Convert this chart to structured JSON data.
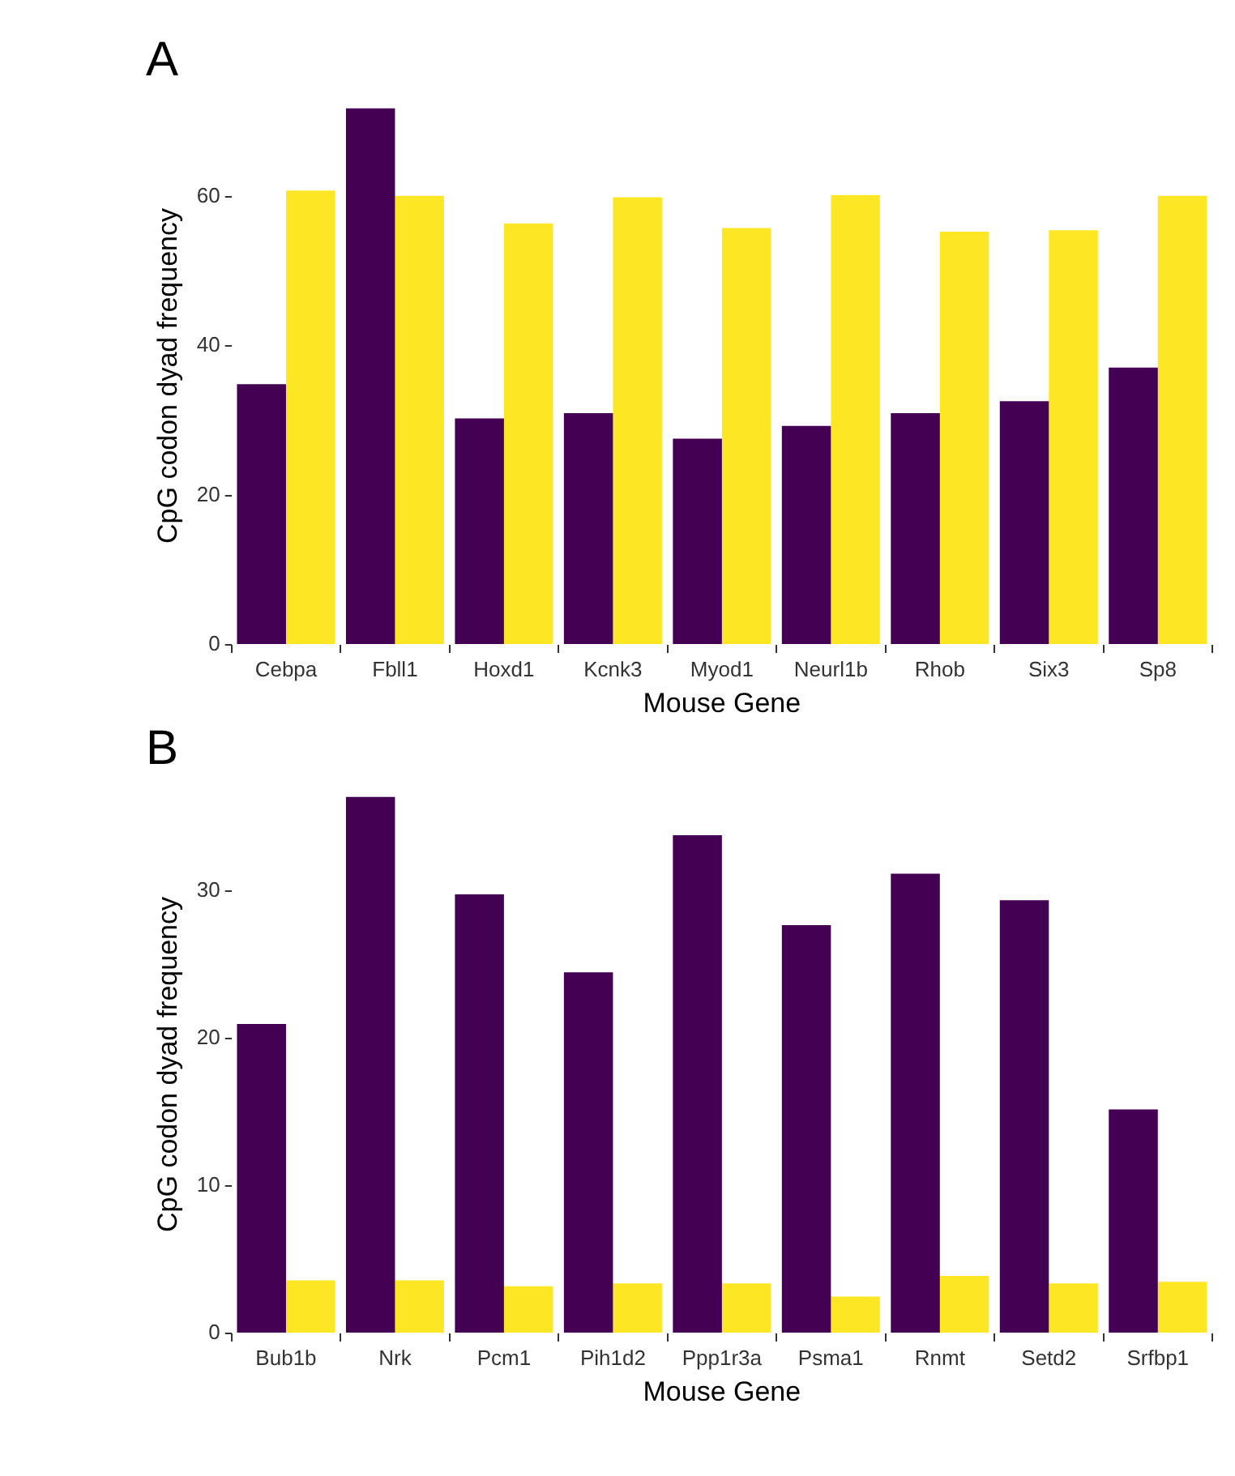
{
  "chart_data": [
    {
      "type": "bar",
      "title": "A",
      "xlabel": "Mouse Gene",
      "ylabel": "CpG codon dyad frequency",
      "categories": [
        "Cebpa",
        "Fbll1",
        "Hoxd1",
        "Kcnk3",
        "Myod1",
        "Neurl1b",
        "Rhob",
        "Six3",
        "Sp8"
      ],
      "series": [
        {
          "color": "#440154",
          "values": [
            34.9,
            71.8,
            30.3,
            31.0,
            27.6,
            29.3,
            31.0,
            32.6,
            37.1
          ]
        },
        {
          "color": "#fde725",
          "values": [
            60.8,
            60.1,
            56.4,
            59.9,
            55.8,
            60.2,
            55.3,
            55.5,
            60.1
          ]
        }
      ],
      "ylim": [
        0,
        72
      ],
      "yticks": [
        0,
        20,
        40,
        60
      ],
      "grid": false,
      "legend": false
    },
    {
      "type": "bar",
      "title": "B",
      "xlabel": "Mouse Gene",
      "ylabel": "CpG codon dyad frequency",
      "categories": [
        "Bub1b",
        "Nrk",
        "Pcm1",
        "Pih1d2",
        "Ppp1r3a",
        "Psma1",
        "Rnmt",
        "Setd2",
        "Srfbp1"
      ],
      "series": [
        {
          "color": "#440154",
          "values": [
            21.0,
            36.4,
            29.8,
            24.5,
            33.8,
            27.7,
            31.2,
            29.4,
            15.2
          ]
        },
        {
          "color": "#fde725",
          "values": [
            3.6,
            3.6,
            3.2,
            3.4,
            3.4,
            2.5,
            3.9,
            3.4,
            3.5
          ]
        }
      ],
      "ylim": [
        0,
        36.5
      ],
      "yticks": [
        0,
        10,
        20,
        30
      ],
      "grid": false,
      "legend": false
    }
  ]
}
